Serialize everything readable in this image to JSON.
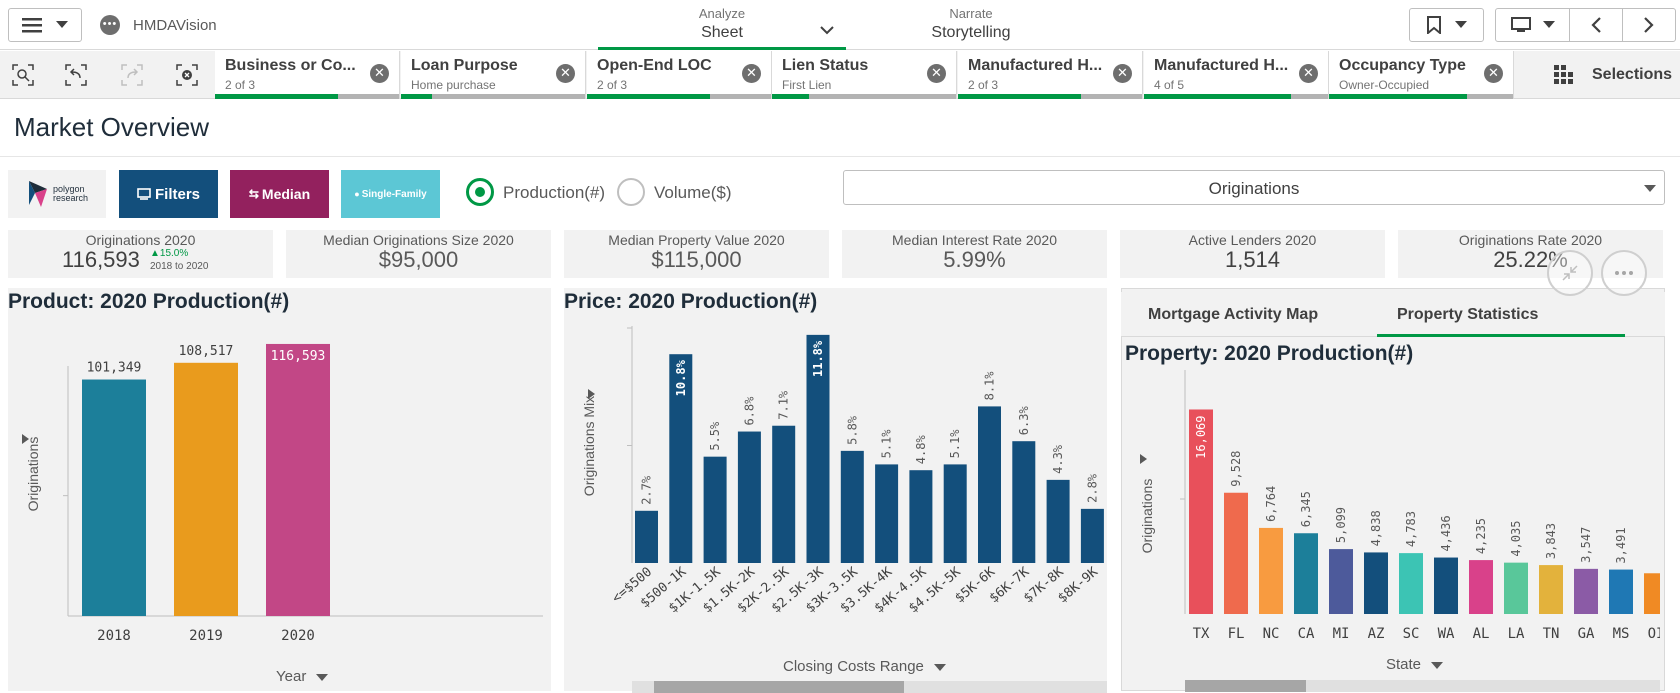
{
  "app": {
    "name": "HMDAVision"
  },
  "nav": {
    "analyze": {
      "small": "Analyze",
      "big": "Sheet"
    },
    "narrate": {
      "small": "Narrate",
      "big": "Storytelling"
    }
  },
  "selections": {
    "items": [
      {
        "title": "Business or Co...",
        "sub": "2 of 3",
        "fill": 0.67
      },
      {
        "title": "Loan Purpose",
        "sub": "Home purchase",
        "fill": 0.17
      },
      {
        "title": "Open-End LOC",
        "sub": "2 of 3",
        "fill": 0.67
      },
      {
        "title": "Lien Status",
        "sub": "First Lien",
        "fill": 0.2
      },
      {
        "title": "Manufactured H...",
        "sub": "2 of 3",
        "fill": 0.67
      },
      {
        "title": "Manufactured H...",
        "sub": "4 of 5",
        "fill": 0.8
      },
      {
        "title": "Occupancy Type",
        "sub": "Owner-Occupied",
        "fill": 0.75
      }
    ],
    "button_label": "Selections"
  },
  "sheet": {
    "title": "Market Overview"
  },
  "controls": {
    "logo_text": "polygon research",
    "filters_label": "Filters",
    "median_label": "Median",
    "single_family_label": "Single-Family",
    "radio_production": "Production(#)",
    "radio_volume": "Volume($)",
    "dropdown_value": "Originations",
    "colors": {
      "filters": "#134f7c",
      "median": "#93215e",
      "single": "#5cc7d5",
      "accent": "#009845"
    }
  },
  "kpis": [
    {
      "label": "Originations 2020",
      "value": "116,593",
      "delta": "▲15.0%",
      "delta_note": "2018 to 2020"
    },
    {
      "label": "Median Originations Size 2020",
      "value": "$95,000"
    },
    {
      "label": "Median Property Value 2020",
      "value": "$115,000"
    },
    {
      "label": "Median Interest Rate 2020",
      "value": "5.99%"
    },
    {
      "label": "Active Lenders 2020",
      "value": "1,514"
    },
    {
      "label": "Originations Rate 2020",
      "value": "25.22%"
    }
  ],
  "panels": {
    "product": {
      "title": "Product: 2020 Production(#)",
      "ylabel": "Originations",
      "xlabel": "Year"
    },
    "price": {
      "title": "Price: 2020 Production(#)",
      "ylabel": "Originations Mix",
      "xlabel": "Closing Costs Range"
    },
    "property": {
      "tabs": [
        "Mortgage Activity Map",
        "Property Statistics"
      ],
      "title": "Property: 2020 Production(#)",
      "ylabel": "Originations",
      "xlabel": "State"
    }
  },
  "chart_data": [
    {
      "type": "bar",
      "title": "Product: 2020 Production(#)",
      "categories": [
        "2018",
        "2019",
        "2020"
      ],
      "values": [
        101349,
        108517,
        116593
      ],
      "labels": [
        "101,349",
        "108,517",
        "116,593"
      ],
      "colors": [
        "#1c7f9a",
        "#e99b1d",
        "#c24786"
      ],
      "xlabel": "Year",
      "ylabel": "Originations",
      "ylim": [
        0,
        120000
      ]
    },
    {
      "type": "bar",
      "title": "Price: 2020 Production(#)",
      "categories": [
        "<=$500",
        "$500-1K",
        "$1K-1.5K",
        "$1.5K-2K",
        "$2K-2.5K",
        "$2.5K-3K",
        "$3K-3.5K",
        "$3.5K-4K",
        "$4K-4.5K",
        "$4.5K-5K",
        "$5K-6K",
        "$6K-7K",
        "$7K-8K",
        "$8K-9K"
      ],
      "values": [
        2.7,
        10.8,
        5.5,
        6.8,
        7.1,
        11.8,
        5.8,
        5.1,
        4.8,
        5.1,
        8.1,
        6.3,
        4.3,
        2.8
      ],
      "labels": [
        "2.7%",
        "10.8%",
        "5.5%",
        "6.8%",
        "7.1%",
        "11.8%",
        "5.8%",
        "5.1%",
        "4.8%",
        "5.1%",
        "8.1%",
        "6.3%",
        "4.3%",
        "2.8%"
      ],
      "color": "#134f7c",
      "xlabel": "Closing Costs Range",
      "ylabel": "Originations Mix",
      "ylim": [
        0,
        12
      ]
    },
    {
      "type": "bar",
      "title": "Property: 2020 Production(#)",
      "categories": [
        "TX",
        "FL",
        "NC",
        "CA",
        "MI",
        "AZ",
        "SC",
        "WA",
        "AL",
        "LA",
        "TN",
        "GA",
        "MS",
        "OI"
      ],
      "values": [
        16069,
        9528,
        6764,
        6345,
        5099,
        4838,
        4783,
        4436,
        4235,
        4035,
        3843,
        3547,
        3491,
        3200
      ],
      "labels": [
        "16,069",
        "9,528",
        "6,764",
        "6,345",
        "5,099",
        "4,838",
        "4,783",
        "4,436",
        "4,235",
        "4,035",
        "3,843",
        "3,547",
        "3,491",
        ""
      ],
      "colors": [
        "#e8505b",
        "#ef6a4d",
        "#f89b40",
        "#1c7f9a",
        "#4d5a9b",
        "#134f7c",
        "#3cc4b4",
        "#134f7c",
        "#d9418a",
        "#59c79a",
        "#e3b23c",
        "#8b5ba6",
        "#1f78b4",
        "#f08a24"
      ],
      "xlabel": "State",
      "ylabel": "Originations",
      "ylim": [
        0,
        16500
      ]
    }
  ]
}
